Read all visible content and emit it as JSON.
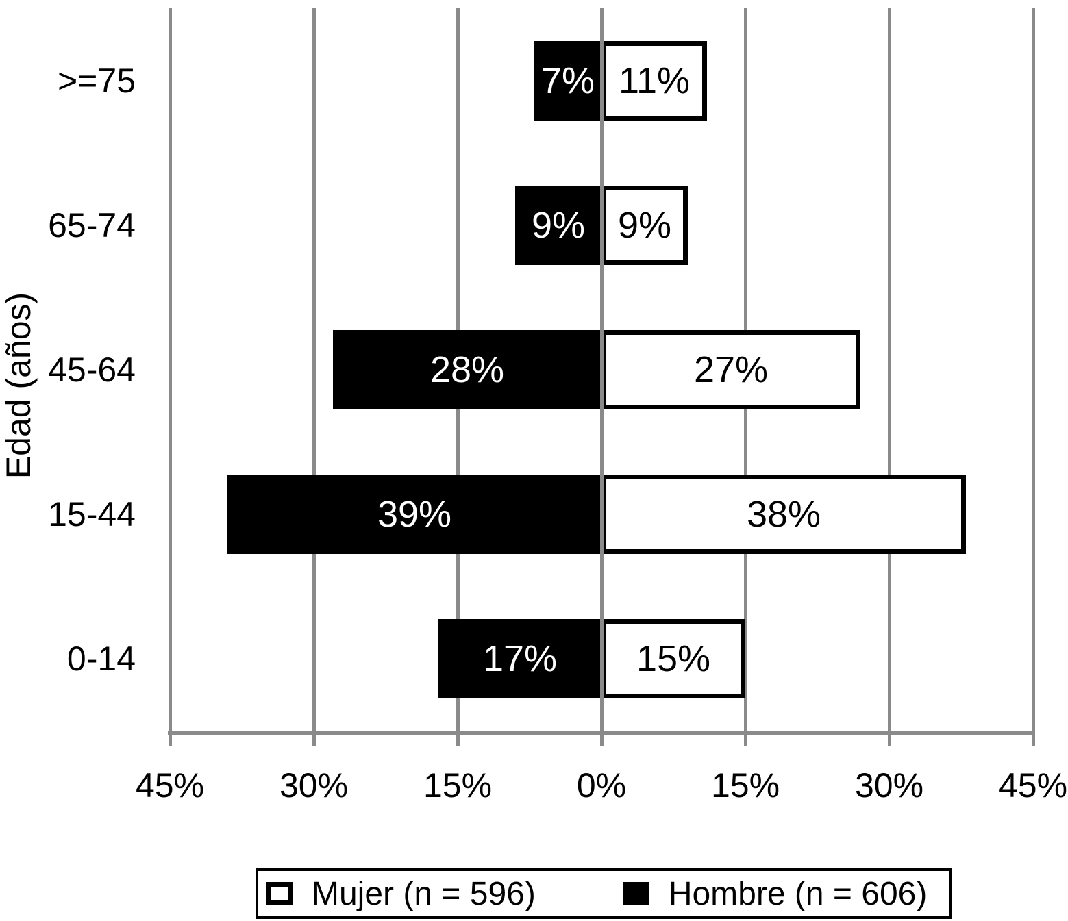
{
  "chart_data": {
    "type": "bar",
    "subtype": "population-pyramid",
    "title": "",
    "xlabel": "",
    "ylabel": "Edad (años)",
    "grid": "vertical-gridlines",
    "legend_position": "bottom",
    "categories_top_to_bottom": [
      ">=75",
      "65-74",
      "45-64",
      "15-44",
      "0-14"
    ],
    "series": [
      {
        "name": "Hombre (n = 606)",
        "side": "left",
        "color": "#000000",
        "text_color": "#ffffff",
        "values": [
          7,
          9,
          28,
          39,
          17
        ],
        "labels": [
          "7%",
          "9%",
          "28%",
          "39%",
          "17%"
        ]
      },
      {
        "name": "Mujer (n = 596)",
        "side": "right",
        "color": "#ffffff",
        "text_color": "#000000",
        "values": [
          11,
          9,
          27,
          38,
          15
        ],
        "labels": [
          "11%",
          "9%",
          "27%",
          "38%",
          "15%"
        ]
      }
    ],
    "x_axis": {
      "min": -45,
      "max": 45,
      "tick_values": [
        -45,
        -30,
        -15,
        0,
        15,
        30,
        45
      ],
      "tick_labels": [
        "45%",
        "30%",
        "15%",
        "0%",
        "15%",
        "30%",
        "45%"
      ]
    },
    "legend": {
      "entries": [
        {
          "id": "mujer",
          "label": "Mujer (n = 596)",
          "swatch": "white-outlined"
        },
        {
          "id": "hombre",
          "label": "Hombre (n = 606)",
          "swatch": "black-filled"
        }
      ]
    },
    "colors": {
      "bar_black": "#000000",
      "bar_white": "#ffffff",
      "grid_gray": "#8a8a8a",
      "text": "#000000"
    }
  }
}
